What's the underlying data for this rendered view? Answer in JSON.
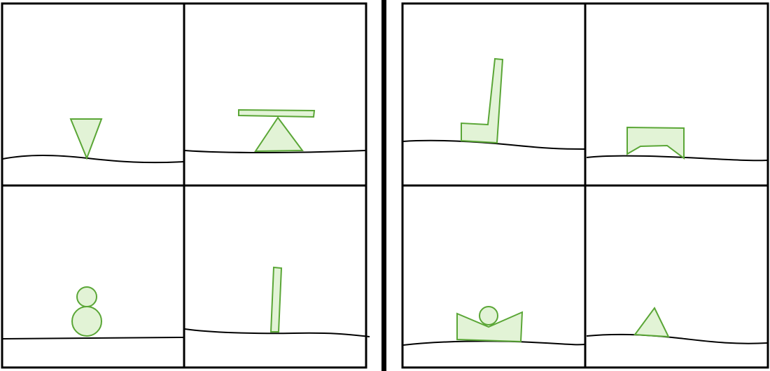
{
  "figure": {
    "groups": [
      {
        "name": "left-group",
        "panels": [
          {
            "id": "panel-1",
            "objects": [
              "inverted-triangle"
            ]
          },
          {
            "id": "panel-2",
            "objects": [
              "plank",
              "triangle"
            ]
          },
          {
            "id": "panel-3",
            "objects": [
              "small-circle",
              "large-circle"
            ]
          },
          {
            "id": "panel-4",
            "objects": [
              "thin-bar"
            ]
          }
        ]
      },
      {
        "name": "right-group",
        "panels": [
          {
            "id": "panel-5",
            "objects": [
              "l-shape"
            ]
          },
          {
            "id": "panel-6",
            "objects": [
              "bridge-shape"
            ]
          },
          {
            "id": "panel-7",
            "objects": [
              "v-notch-shape",
              "ball"
            ]
          },
          {
            "id": "panel-8",
            "objects": [
              "triangle"
            ]
          }
        ]
      }
    ],
    "colors": {
      "shape_fill": "#e2f3d6",
      "shape_stroke": "#5aa636",
      "line": "#000000",
      "background": "#ffffff"
    }
  }
}
